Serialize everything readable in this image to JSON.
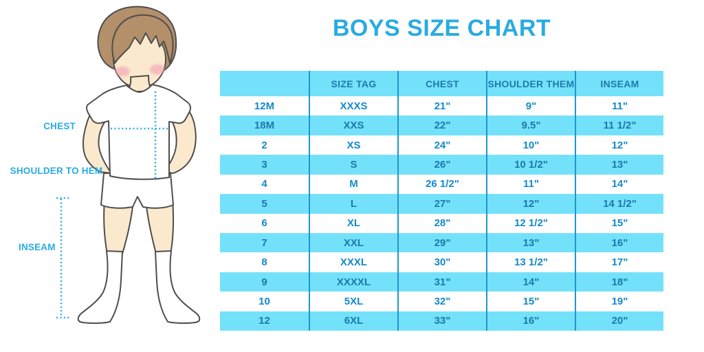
{
  "title": "BOYS SIZE CHART",
  "illustration": {
    "labels": [
      "CHEST",
      "SHOULDER TO HEM",
      "INSEAM"
    ]
  },
  "chart_data": {
    "type": "table",
    "title": "BOYS SIZE CHART",
    "columns": [
      "",
      "SIZE TAG",
      "CHEST",
      "SHOULDER THEM",
      "INSEAM"
    ],
    "rows": [
      [
        "12M",
        "XXXS",
        "21\"",
        "9\"",
        "11\""
      ],
      [
        "18M",
        "XXS",
        "22\"",
        "9.5\"",
        "11 1/2\""
      ],
      [
        "2",
        "XS",
        "24\"",
        "10\"",
        "12\""
      ],
      [
        "3",
        "S",
        "26\"",
        "10 1/2\"",
        "13\""
      ],
      [
        "4",
        "M",
        "26 1/2\"",
        "11\"",
        "14\""
      ],
      [
        "5",
        "L",
        "27\"",
        "12\"",
        "14 1/2\""
      ],
      [
        "6",
        "XL",
        "28\"",
        "12 1/2\"",
        "15\""
      ],
      [
        "7",
        "XXL",
        "29\"",
        "13\"",
        "16\""
      ],
      [
        "8",
        "XXXL",
        "30\"",
        "13 1/2\"",
        "17\""
      ],
      [
        "9",
        "XXXXL",
        "31\"",
        "14\"",
        "18\""
      ],
      [
        "10",
        "5XL",
        "32\"",
        "15\"",
        "19\""
      ],
      [
        "12",
        "6XL",
        "33\"",
        "16\"",
        "20\""
      ]
    ]
  },
  "colors": {
    "accent_blue": "#29ABE2",
    "row_cyan": "#74E1FA",
    "divider_blue": "#1E96CC",
    "table_text_blue": "#1389CB",
    "table_text_on_cyan": "#1A79A9",
    "dotted_line_blue": "#2BACE4"
  }
}
